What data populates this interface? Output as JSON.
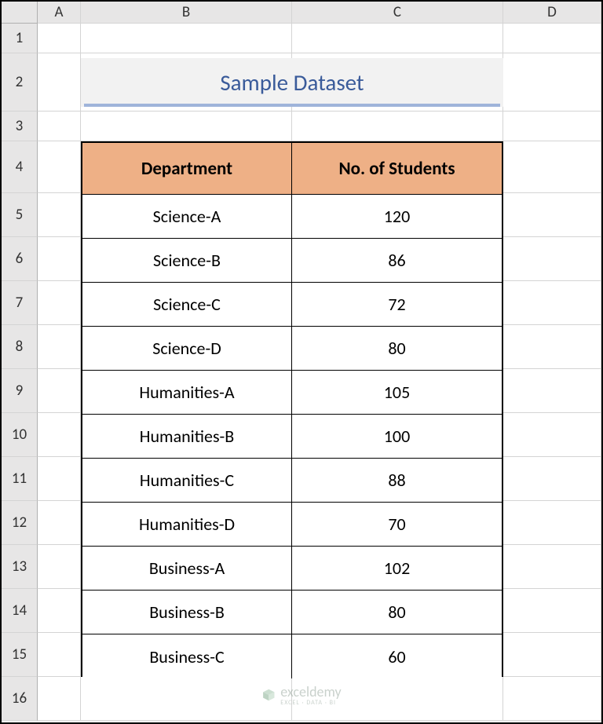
{
  "grid": {
    "row_header_width": 46,
    "col_widths": {
      "A": 55,
      "B": 269,
      "C": 269,
      "D": 125
    },
    "row_heights": {
      "header": 28,
      "1": 38,
      "2": 74,
      "3": 38,
      "4": 66,
      "5": 56,
      "6": 56,
      "7": 56,
      "8": 56,
      "9": 56,
      "10": 56,
      "11": 56,
      "12": 56,
      "13": 56,
      "14": 56,
      "15": 56,
      "16": 56
    },
    "columns": [
      "A",
      "B",
      "C",
      "D"
    ],
    "rows": [
      "1",
      "2",
      "3",
      "4",
      "5",
      "6",
      "7",
      "8",
      "9",
      "10",
      "11",
      "12",
      "13",
      "14",
      "15",
      "16"
    ],
    "header_bg": "#e7e6e6",
    "gridline_color": "#d4d4d4",
    "cell_bg": "#ffffff",
    "header_font_color": "#333333",
    "header_fontsize": 19
  },
  "title": {
    "text": "Sample Dataset",
    "cell_range": "B2:C2",
    "bg_color": "#f2f2f2",
    "text_color": "#3a5b9a",
    "fontsize": 29,
    "underline_color": "#9fb4da",
    "underline_height": 4
  },
  "data_table": {
    "range": "B4:C15",
    "type": "table",
    "header_bg": "#eeb086",
    "header_font_weight": 700,
    "header_fontsize": 23,
    "body_fontsize": 22,
    "border_color": "#000000",
    "outer_border_width": 2,
    "inner_border_width": 1,
    "text_color": "#000000",
    "body_bg": "#ffffff",
    "columns": [
      "Department",
      "No. of Students"
    ],
    "column_alignment": [
      "center",
      "center"
    ],
    "rows": [
      [
        "Science-A",
        "120"
      ],
      [
        "Science-B",
        "86"
      ],
      [
        "Science-C",
        "72"
      ],
      [
        "Science-D",
        "80"
      ],
      [
        "Humanities-A",
        "105"
      ],
      [
        "Humanities-B",
        "100"
      ],
      [
        "Humanities-C",
        "88"
      ],
      [
        "Humanities-D",
        "70"
      ],
      [
        "Business-A",
        "102"
      ],
      [
        "Business-B",
        "80"
      ],
      [
        "Business-C",
        "60"
      ]
    ]
  },
  "watermark": {
    "brand": "exceldemy",
    "sub": "EXCEL · DATA · BI",
    "color": "#8a9b8f",
    "opacity": 0.45,
    "icon_color": "#8fb99a"
  }
}
